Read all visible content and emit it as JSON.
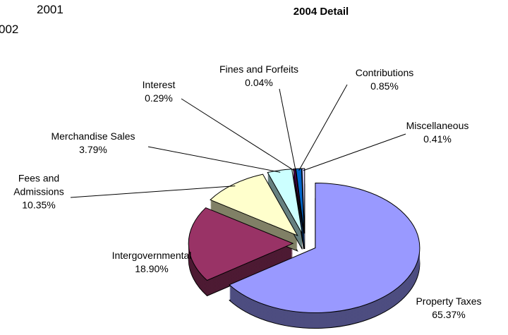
{
  "chart_data": {
    "type": "pie",
    "title": "2004 Detail",
    "annotations": [
      "2001",
      "002"
    ],
    "categories": [
      "Property Taxes",
      "Intergovernmental",
      "Fees and Admissions",
      "Merchandise Sales",
      "Interest",
      "Fines and Forfeits",
      "Contributions",
      "Miscellaneous"
    ],
    "values": [
      65.37,
      18.9,
      10.35,
      3.79,
      0.29,
      0.04,
      0.85,
      0.41
    ],
    "value_labels": [
      "65.37%",
      "18.90%",
      "10.35%",
      "3.79%",
      "0.29%",
      "0.04%",
      "0.85%",
      "0.41%"
    ],
    "colors": [
      "#9999ff",
      "#993366",
      "#ffffcc",
      "#ccffff",
      "#660066",
      "#ff8080",
      "#0066cc",
      "#ccccff"
    ]
  }
}
